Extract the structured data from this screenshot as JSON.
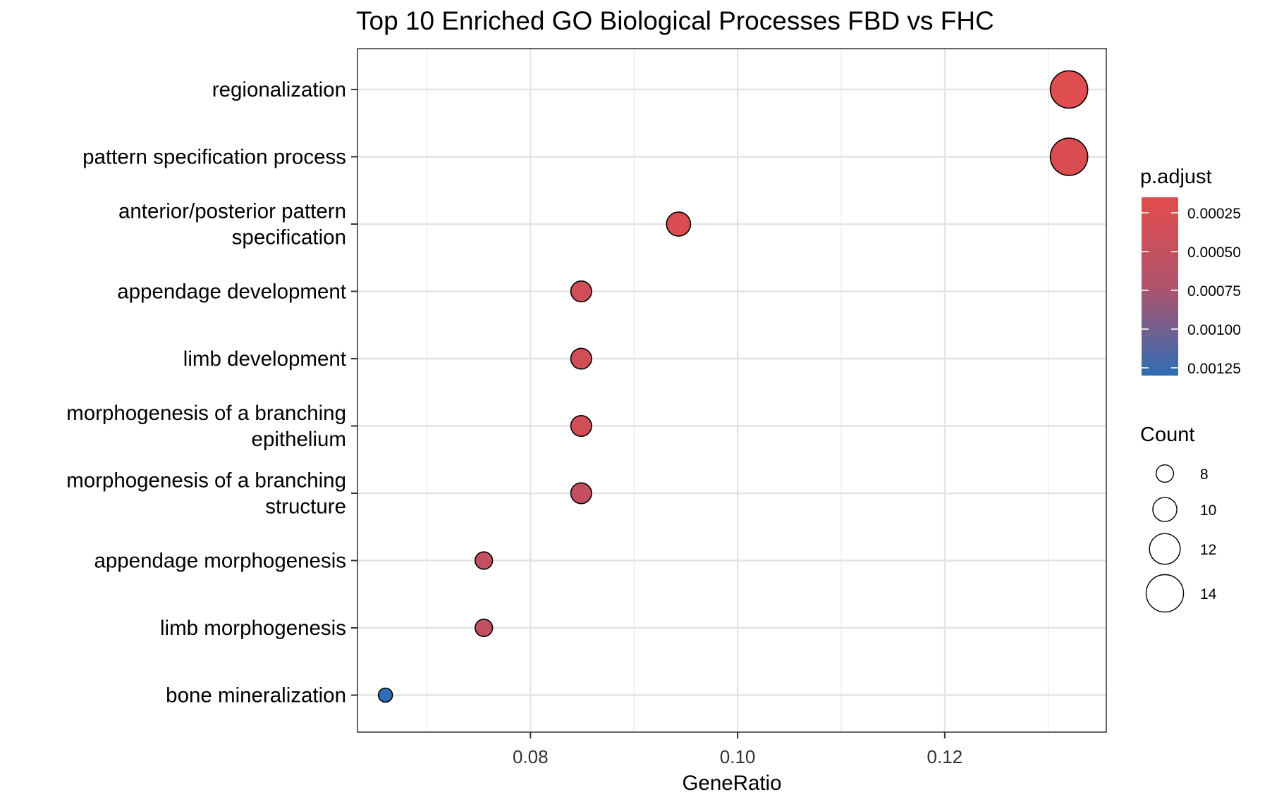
{
  "chart_data": {
    "type": "scatter",
    "title": "Top 10 Enriched GO Biological Processes FBD vs FHC",
    "xlabel": "GeneRatio",
    "ylabel": "",
    "xlim": [
      0.0633,
      0.1356
    ],
    "xticks": [
      {
        "value": 0.08,
        "label": "0.08"
      },
      {
        "value": 0.1,
        "label": "0.10"
      },
      {
        "value": 0.12,
        "label": "0.12"
      }
    ],
    "grid": true,
    "categories": [
      [
        "regionalization"
      ],
      [
        "pattern specification process"
      ],
      [
        "anterior/posterior pattern",
        "specification"
      ],
      [
        "appendage development"
      ],
      [
        "limb development"
      ],
      [
        "morphogenesis of a branching",
        "epithelium"
      ],
      [
        "morphogenesis of a branching",
        "structure"
      ],
      [
        "appendage morphogenesis"
      ],
      [
        "limb morphogenesis"
      ],
      [
        "bone mineralization"
      ]
    ],
    "points": [
      {
        "category": "regionalization",
        "gene_ratio": 0.132,
        "count": 14,
        "p_adjust": 0.0002
      },
      {
        "category": "pattern specification process",
        "gene_ratio": 0.132,
        "count": 14,
        "p_adjust": 0.00025
      },
      {
        "category": "anterior/posterior pattern specification",
        "gene_ratio": 0.0943,
        "count": 10,
        "p_adjust": 0.00025
      },
      {
        "category": "appendage development",
        "gene_ratio": 0.0849,
        "count": 9,
        "p_adjust": 0.00035
      },
      {
        "category": "limb development",
        "gene_ratio": 0.0849,
        "count": 9,
        "p_adjust": 0.00035
      },
      {
        "category": "morphogenesis of a branching epithelium",
        "gene_ratio": 0.0849,
        "count": 9,
        "p_adjust": 0.00035
      },
      {
        "category": "morphogenesis of a branching structure",
        "gene_ratio": 0.0849,
        "count": 9,
        "p_adjust": 0.0005
      },
      {
        "category": "appendage morphogenesis",
        "gene_ratio": 0.0755,
        "count": 8,
        "p_adjust": 0.0005
      },
      {
        "category": "limb morphogenesis",
        "gene_ratio": 0.0755,
        "count": 8,
        "p_adjust": 0.0005
      },
      {
        "category": "bone mineralization",
        "gene_ratio": 0.066,
        "count": 7,
        "p_adjust": 0.0013
      }
    ],
    "color_legend": {
      "title": "p.adjust",
      "low_color": "#E24C4C",
      "high_color": "#2F6DB5",
      "range": [
        0.00015,
        0.0013
      ],
      "ticks": [
        {
          "value": 0.00025,
          "label": "0.00025"
        },
        {
          "value": 0.0005,
          "label": "0.00050"
        },
        {
          "value": 0.00075,
          "label": "0.00075"
        },
        {
          "value": 0.001,
          "label": "0.00100"
        },
        {
          "value": 0.00125,
          "label": "0.00125"
        }
      ]
    },
    "size_legend": {
      "title": "Count",
      "entries": [
        {
          "value": 8,
          "label": "8"
        },
        {
          "value": 10,
          "label": "10"
        },
        {
          "value": 12,
          "label": "12"
        },
        {
          "value": 14,
          "label": "14"
        }
      ]
    }
  }
}
